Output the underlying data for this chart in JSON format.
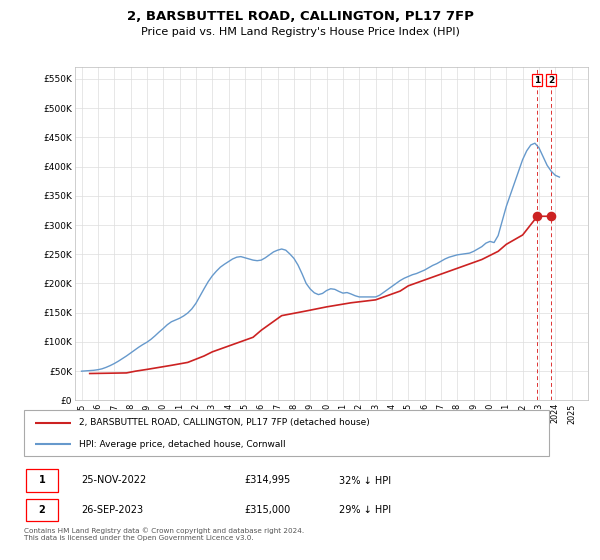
{
  "title": "2, BARSBUTTEL ROAD, CALLINGTON, PL17 7FP",
  "subtitle": "Price paid vs. HM Land Registry's House Price Index (HPI)",
  "title_fontsize": 9.5,
  "subtitle_fontsize": 8,
  "ylim": [
    0,
    570000
  ],
  "yticks": [
    0,
    50000,
    100000,
    150000,
    200000,
    250000,
    300000,
    350000,
    400000,
    450000,
    500000,
    550000
  ],
  "ytick_labels": [
    "£0",
    "£50K",
    "£100K",
    "£150K",
    "£200K",
    "£250K",
    "£300K",
    "£350K",
    "£400K",
    "£450K",
    "£500K",
    "£550K"
  ],
  "xlim_start": 1994.6,
  "xlim_end": 2026.0,
  "hpi_color": "#6699cc",
  "property_color": "#cc2222",
  "marker1_date_num": 2022.9,
  "marker2_date_num": 2023.73,
  "marker1_value": 314995,
  "marker2_value": 315000,
  "legend_line1": "2, BARSBUTTEL ROAD, CALLINGTON, PL17 7FP (detached house)",
  "legend_line2": "HPI: Average price, detached house, Cornwall",
  "table_row1": [
    "1",
    "25-NOV-2022",
    "£314,995",
    "32% ↓ HPI"
  ],
  "table_row2": [
    "2",
    "26-SEP-2023",
    "£315,000",
    "29% ↓ HPI"
  ],
  "footer": "Contains HM Land Registry data © Crown copyright and database right 2024.\nThis data is licensed under the Open Government Licence v3.0.",
  "hpi_x": [
    1995.0,
    1995.25,
    1995.5,
    1995.75,
    1996.0,
    1996.25,
    1996.5,
    1996.75,
    1997.0,
    1997.25,
    1997.5,
    1997.75,
    1998.0,
    1998.25,
    1998.5,
    1998.75,
    1999.0,
    1999.25,
    1999.5,
    1999.75,
    2000.0,
    2000.25,
    2000.5,
    2000.75,
    2001.0,
    2001.25,
    2001.5,
    2001.75,
    2002.0,
    2002.25,
    2002.5,
    2002.75,
    2003.0,
    2003.25,
    2003.5,
    2003.75,
    2004.0,
    2004.25,
    2004.5,
    2004.75,
    2005.0,
    2005.25,
    2005.5,
    2005.75,
    2006.0,
    2006.25,
    2006.5,
    2006.75,
    2007.0,
    2007.25,
    2007.5,
    2007.75,
    2008.0,
    2008.25,
    2008.5,
    2008.75,
    2009.0,
    2009.25,
    2009.5,
    2009.75,
    2010.0,
    2010.25,
    2010.5,
    2010.75,
    2011.0,
    2011.25,
    2011.5,
    2011.75,
    2012.0,
    2012.25,
    2012.5,
    2012.75,
    2013.0,
    2013.25,
    2013.5,
    2013.75,
    2014.0,
    2014.25,
    2014.5,
    2014.75,
    2015.0,
    2015.25,
    2015.5,
    2015.75,
    2016.0,
    2016.25,
    2016.5,
    2016.75,
    2017.0,
    2017.25,
    2017.5,
    2017.75,
    2018.0,
    2018.25,
    2018.5,
    2018.75,
    2019.0,
    2019.25,
    2019.5,
    2019.75,
    2020.0,
    2020.25,
    2020.5,
    2020.75,
    2021.0,
    2021.25,
    2021.5,
    2021.75,
    2022.0,
    2022.25,
    2022.5,
    2022.75,
    2023.0,
    2023.25,
    2023.5,
    2023.75,
    2024.0,
    2024.25
  ],
  "hpi_y": [
    50000,
    50500,
    51000,
    51500,
    52500,
    54000,
    56500,
    59500,
    63000,
    67000,
    71500,
    76000,
    81000,
    86000,
    91000,
    95500,
    99500,
    104500,
    110500,
    117000,
    123000,
    129500,
    134500,
    137500,
    140500,
    144500,
    149500,
    156500,
    166000,
    178500,
    191000,
    203000,
    213000,
    221000,
    228000,
    233000,
    237500,
    242000,
    245000,
    246000,
    244000,
    242000,
    240000,
    239000,
    240000,
    244000,
    249000,
    254000,
    257000,
    259000,
    257000,
    250500,
    243000,
    231500,
    216500,
    200000,
    190500,
    184000,
    181000,
    183000,
    188000,
    191000,
    190000,
    186500,
    183500,
    184500,
    182000,
    179000,
    177000,
    177000,
    177000,
    177000,
    177000,
    180000,
    185000,
    190000,
    195000,
    200000,
    205000,
    209000,
    212000,
    215000,
    217000,
    220000,
    223000,
    227000,
    231000,
    234000,
    238000,
    242000,
    245000,
    247000,
    249000,
    250000,
    251000,
    252000,
    255000,
    259000,
    263000,
    269000,
    272000,
    270000,
    282000,
    307000,
    332000,
    352000,
    372000,
    392000,
    412000,
    427000,
    437000,
    440000,
    432000,
    417000,
    402000,
    392000,
    385000,
    382000
  ],
  "property_x": [
    1995.5,
    1997.75,
    1998.3,
    1999.0,
    2000.5,
    2001.5,
    2002.5,
    2003.0,
    2004.0,
    2005.5,
    2006.0,
    2007.25,
    2008.75,
    2010.0,
    2011.5,
    2013.0,
    2014.5,
    2015.0,
    2016.0,
    2017.0,
    2018.0,
    2019.0,
    2019.5,
    2020.5,
    2021.0,
    2022.0,
    2022.9,
    2023.73
  ],
  "property_y": [
    46000,
    47000,
    50000,
    53000,
    60000,
    65000,
    76000,
    83000,
    93000,
    108000,
    120000,
    145000,
    153000,
    160000,
    167000,
    172000,
    187000,
    196000,
    206000,
    216000,
    226000,
    236000,
    241000,
    255000,
    267000,
    283000,
    314995,
    315000
  ]
}
